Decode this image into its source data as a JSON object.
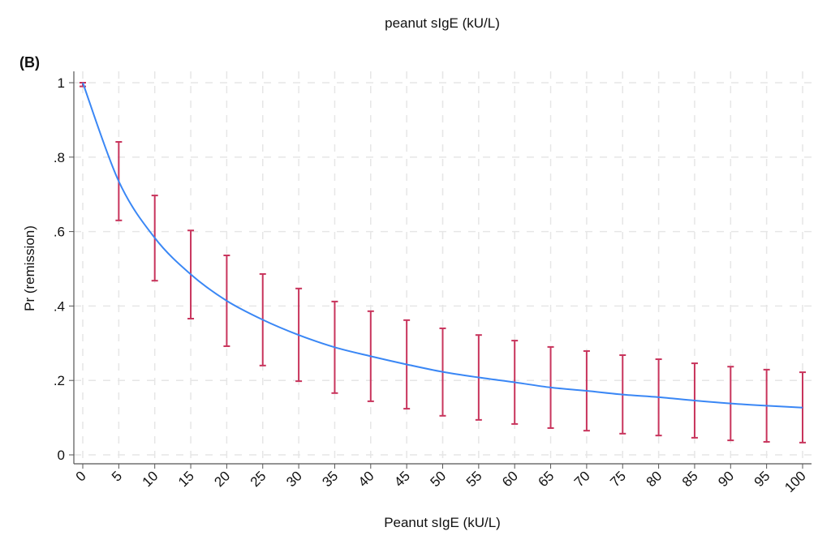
{
  "chart_data": {
    "type": "line",
    "title": "peanut sIgE (kU/L)",
    "panel_label": "(B)",
    "xlabel": "Peanut sIgE (kU/L)",
    "ylabel": "Pr (remission)",
    "xlim": [
      0,
      100
    ],
    "ylim": [
      0,
      1
    ],
    "grid": true,
    "x": [
      0,
      5,
      10,
      15,
      20,
      25,
      30,
      35,
      40,
      45,
      50,
      55,
      60,
      65,
      70,
      75,
      80,
      85,
      90,
      95,
      100
    ],
    "y_ticks": [
      0,
      0.2,
      0.4,
      0.6,
      0.8,
      1
    ],
    "y_tick_labels": [
      "0",
      ".2",
      ".4",
      ".6",
      ".8",
      "1"
    ],
    "x_tick_labels": [
      "0",
      "5",
      "10",
      "15",
      "20",
      "25",
      "30",
      "35",
      "40",
      "45",
      "50",
      "55",
      "60",
      "65",
      "70",
      "75",
      "80",
      "85",
      "90",
      "95",
      "100"
    ],
    "series": [
      {
        "name": "Pr (remission)",
        "color": "#3a87f5",
        "values": [
          1.0,
          0.735,
          0.583,
          0.485,
          0.414,
          0.363,
          0.322,
          0.289,
          0.265,
          0.243,
          0.223,
          0.208,
          0.195,
          0.181,
          0.172,
          0.162,
          0.155,
          0.146,
          0.138,
          0.132,
          0.127
        ],
        "ci_lower": [
          0.99,
          0.63,
          0.468,
          0.366,
          0.292,
          0.24,
          0.198,
          0.166,
          0.144,
          0.124,
          0.105,
          0.094,
          0.083,
          0.072,
          0.065,
          0.057,
          0.052,
          0.046,
          0.039,
          0.035,
          0.033
        ],
        "ci_upper": [
          1.0,
          0.841,
          0.697,
          0.603,
          0.536,
          0.486,
          0.447,
          0.412,
          0.386,
          0.362,
          0.34,
          0.322,
          0.307,
          0.29,
          0.279,
          0.268,
          0.257,
          0.246,
          0.237,
          0.229,
          0.222
        ],
        "ci_color": "#c8345c"
      }
    ]
  }
}
